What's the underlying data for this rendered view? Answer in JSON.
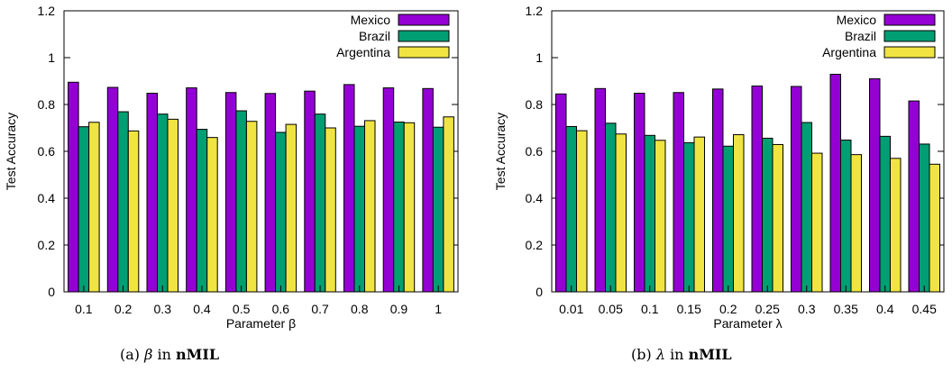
{
  "chart_data": [
    {
      "type": "bar",
      "ylabel": "Test Accuracy",
      "xlabel": "Parameter β",
      "ylim": [
        0,
        1.2
      ],
      "yticks": [
        "0",
        "0.2",
        "0.4",
        "0.6",
        "0.8",
        "1",
        "1.2"
      ],
      "categories": [
        "0.1",
        "0.2",
        "0.3",
        "0.4",
        "0.5",
        "0.6",
        "0.7",
        "0.8",
        "0.9",
        "1"
      ],
      "legend_position": "top-right",
      "series": [
        {
          "name": "Mexico",
          "color": "#9400d3",
          "values": [
            0.895,
            0.873,
            0.848,
            0.871,
            0.851,
            0.847,
            0.857,
            0.885,
            0.871,
            0.868
          ]
        },
        {
          "name": "Brazil",
          "color": "#009e73",
          "values": [
            0.705,
            0.769,
            0.759,
            0.694,
            0.773,
            0.681,
            0.759,
            0.707,
            0.725,
            0.703
          ]
        },
        {
          "name": "Argentina",
          "color": "#f0e442",
          "values": [
            0.724,
            0.687,
            0.737,
            0.659,
            0.728,
            0.715,
            0.7,
            0.731,
            0.722,
            0.747
          ]
        }
      ]
    },
    {
      "type": "bar",
      "ylabel": "Test Accuracy",
      "xlabel": "Parameter λ",
      "ylim": [
        0,
        1.2
      ],
      "yticks": [
        "0",
        "0.2",
        "0.4",
        "0.6",
        "0.8",
        "1",
        "1.2"
      ],
      "categories": [
        "0.01",
        "0.05",
        "0.1",
        "0.15",
        "0.2",
        "0.25",
        "0.3",
        "0.35",
        "0.4",
        "0.45"
      ],
      "legend_position": "top-right",
      "series": [
        {
          "name": "Mexico",
          "color": "#9400d3",
          "values": [
            0.845,
            0.868,
            0.848,
            0.851,
            0.866,
            0.879,
            0.877,
            0.929,
            0.91,
            0.815
          ]
        },
        {
          "name": "Brazil",
          "color": "#009e73",
          "values": [
            0.706,
            0.72,
            0.668,
            0.637,
            0.622,
            0.656,
            0.723,
            0.648,
            0.664,
            0.631
          ]
        },
        {
          "name": "Argentina",
          "color": "#f0e442",
          "values": [
            0.688,
            0.674,
            0.647,
            0.661,
            0.671,
            0.629,
            0.592,
            0.586,
            0.57,
            0.545
          ]
        }
      ]
    }
  ],
  "captions": [
    {
      "prefix": "(a)",
      "symbol": "β",
      "middle": "in",
      "bold": "nMIL"
    },
    {
      "prefix": "(b)",
      "symbol": "λ",
      "middle": "in",
      "bold": "nMIL"
    }
  ]
}
